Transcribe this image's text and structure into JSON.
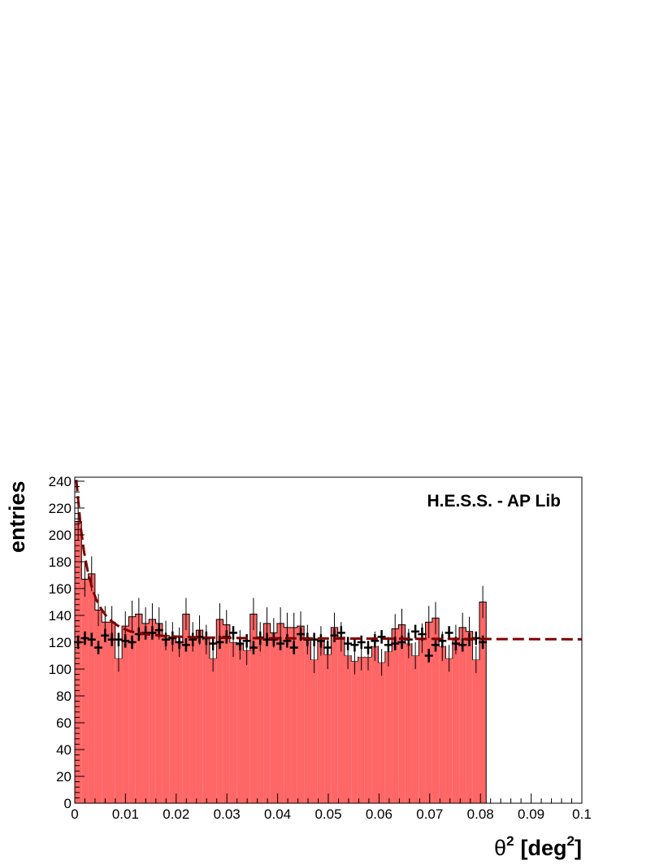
{
  "chart_data": {
    "type": "bar",
    "title": "",
    "annotation": "H.E.S.S. - AP Lib",
    "xlabel_main": "θ",
    "xlabel_sup": "2",
    "xlabel_unit": "[deg",
    "xlabel_unit_sup": "2",
    "xlabel_unit_close": "]",
    "ylabel": "entries",
    "xlim": [
      0,
      0.1
    ],
    "ylim": [
      0,
      243
    ],
    "bin_width": 0.00133,
    "x_tick_labels": [
      "0",
      "0.01",
      "0.02",
      "0.03",
      "0.04",
      "0.05",
      "0.06",
      "0.07",
      "0.08",
      "0.09",
      "0.1"
    ],
    "y_tick_labels": [
      "0",
      "20",
      "40",
      "60",
      "80",
      "100",
      "120",
      "140",
      "160",
      "180",
      "200",
      "220",
      "240"
    ],
    "colors": {
      "on_fill": "#ff6666",
      "off_marker": "#000000",
      "fit_line": "#800000"
    },
    "series": [
      {
        "values": [
          210,
          167,
          171,
          144,
          135,
          135,
          108,
          132,
          139,
          141,
          134,
          137,
          134,
          125,
          124,
          120,
          141,
          124,
          129,
          122,
          108,
          137,
          133,
          120,
          118,
          114,
          141,
          124,
          134,
          127,
          134,
          131,
          131,
          132,
          122,
          107,
          121,
          111,
          131,
          124,
          110,
          106,
          109,
          109,
          117,
          105,
          113,
          130,
          133,
          119,
          110,
          123,
          135,
          138,
          117,
          108,
          122,
          131,
          128,
          107,
          150
        ],
        "errors": [
          14,
          13,
          13,
          12,
          12,
          12,
          10,
          11,
          12,
          12,
          12,
          12,
          12,
          11,
          11,
          11,
          12,
          11,
          11,
          11,
          10,
          12,
          11,
          11,
          11,
          11,
          12,
          11,
          12,
          11,
          12,
          11,
          11,
          11,
          11,
          10,
          11,
          11,
          11,
          11,
          10,
          10,
          10,
          10,
          11,
          10,
          11,
          11,
          12,
          11,
          10,
          11,
          12,
          12,
          11,
          10,
          11,
          11,
          11,
          10,
          12
        ]
      },
      {
        "values": [
          120,
          123,
          122,
          116,
          125,
          122,
          122,
          121,
          120,
          126,
          127,
          127,
          129,
          122,
          123,
          120,
          118,
          122,
          124,
          123,
          119,
          120,
          124,
          127,
          119,
          121,
          116,
          123,
          122,
          122,
          119,
          121,
          116,
          126,
          122,
          122,
          121,
          116,
          125,
          127,
          119,
          118,
          120,
          116,
          121,
          124,
          118,
          119,
          120,
          122,
          128,
          126,
          110,
          118,
          121,
          127,
          119,
          118,
          122,
          123,
          120
        ],
        "errors": [
          5,
          5,
          5,
          5,
          5,
          5,
          5,
          5,
          5,
          5,
          5,
          5,
          5,
          5,
          5,
          5,
          5,
          5,
          5,
          5,
          5,
          5,
          5,
          5,
          5,
          5,
          5,
          5,
          5,
          5,
          5,
          5,
          5,
          5,
          5,
          5,
          5,
          5,
          5,
          5,
          5,
          5,
          5,
          5,
          5,
          5,
          5,
          5,
          5,
          5,
          5,
          5,
          5,
          5,
          5,
          5,
          5,
          5,
          5,
          5,
          5
        ]
      }
    ],
    "fit": {
      "x": [
        0.0003,
        0.0007,
        0.0012,
        0.0018,
        0.0025,
        0.0033,
        0.0042,
        0.0052,
        0.0063,
        0.0075,
        0.009,
        0.011,
        0.014,
        0.018,
        0.025,
        0.035,
        0.05,
        0.065,
        0.08,
        0.1
      ],
      "y": [
        241,
        225,
        205,
        188,
        174,
        162,
        152,
        145,
        139,
        135,
        131,
        128,
        126,
        124.5,
        123.5,
        123,
        122.8,
        122.6,
        122.4,
        122.2
      ]
    }
  }
}
